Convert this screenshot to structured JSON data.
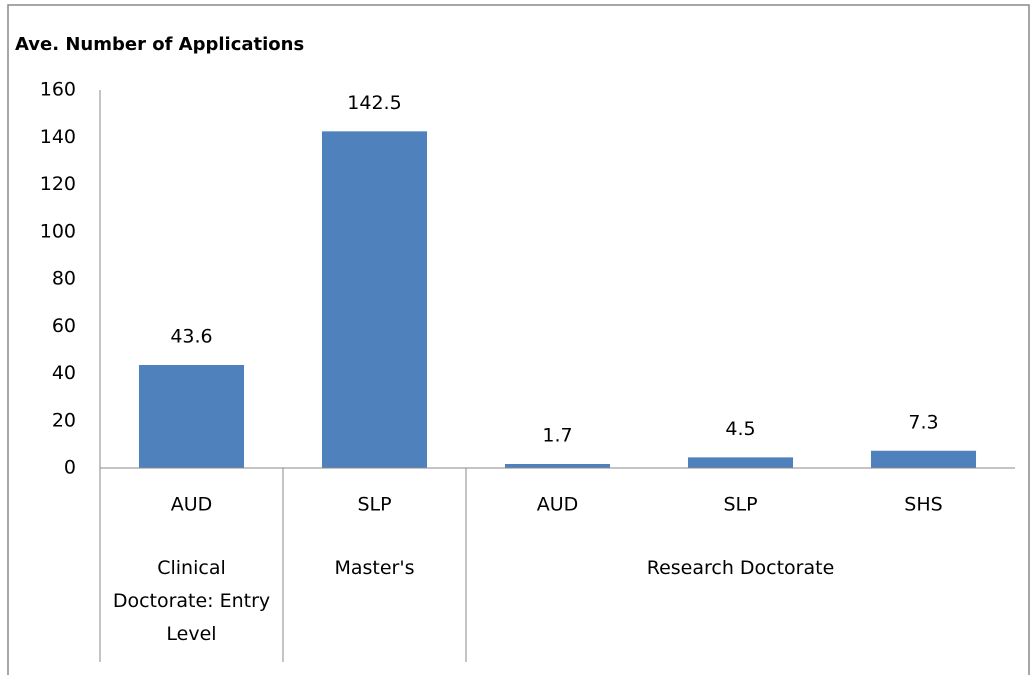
{
  "chart_data": {
    "type": "bar",
    "title": "Ave. Number of Applications",
    "groups": [
      {
        "name": "Clinical Doctorate: Entry Level",
        "categories": [
          "AUD"
        ],
        "values": [
          43.6
        ]
      },
      {
        "name": "Master's",
        "categories": [
          "SLP"
        ],
        "values": [
          142.5
        ]
      },
      {
        "name": "Research Doctorate",
        "categories": [
          "AUD",
          "SLP",
          "SHS"
        ],
        "values": [
          1.7,
          4.5,
          7.3
        ]
      }
    ],
    "color": "#4f81bd",
    "ylim": [
      0,
      160
    ],
    "yticks": [
      0,
      20,
      40,
      60,
      80,
      100,
      120,
      140,
      160
    ],
    "grid": false
  }
}
